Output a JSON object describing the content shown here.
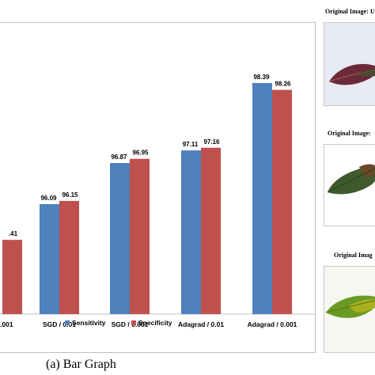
{
  "chart_data": {
    "type": "bar",
    "categories": [
      "",
      "SGD / 0.01",
      "SGD / 0.001",
      "Adagrad / 0.01",
      "Adagrad / 0.001"
    ],
    "visible_tick_labels": [
      ".001",
      "SGD / 0.01",
      "SGD / 0.001",
      "Adagrad / 0.01",
      "Adagrad / 0.001"
    ],
    "series": [
      {
        "name": "Sensitivity",
        "color": "#4F81BD",
        "values": [
          null,
          96.09,
          96.87,
          97.11,
          98.39
        ],
        "labels": [
          "",
          "96.09",
          "96.87",
          "97.11",
          "98.39"
        ]
      },
      {
        "name": "Specificity",
        "color": "#C0504D",
        "values": [
          95.41,
          96.15,
          96.95,
          97.16,
          98.26
        ],
        "labels": [
          ".41",
          "96.15",
          "96.95",
          "97.16",
          "98.26"
        ]
      }
    ],
    "ylim": [
      94.0,
      98.9
    ],
    "grid": false,
    "legend_position": "bottom"
  },
  "caption": "(a) Bar Graph",
  "thumbnails": [
    {
      "title": "Original Image: U",
      "colors": [
        "#e9ecf2",
        "#6b2a3a",
        "#3f5a2c"
      ],
      "icon": "leaf-image-1"
    },
    {
      "title": "Original Image:",
      "colors": [
        "#ffffff",
        "#3f5a2c",
        "#6b4a2a"
      ],
      "icon": "leaf-image-2"
    },
    {
      "title": "Original Imag",
      "colors": [
        "#f4f4f0",
        "#6a9a24",
        "#b4b41c"
      ],
      "icon": "leaf-image-3"
    }
  ]
}
